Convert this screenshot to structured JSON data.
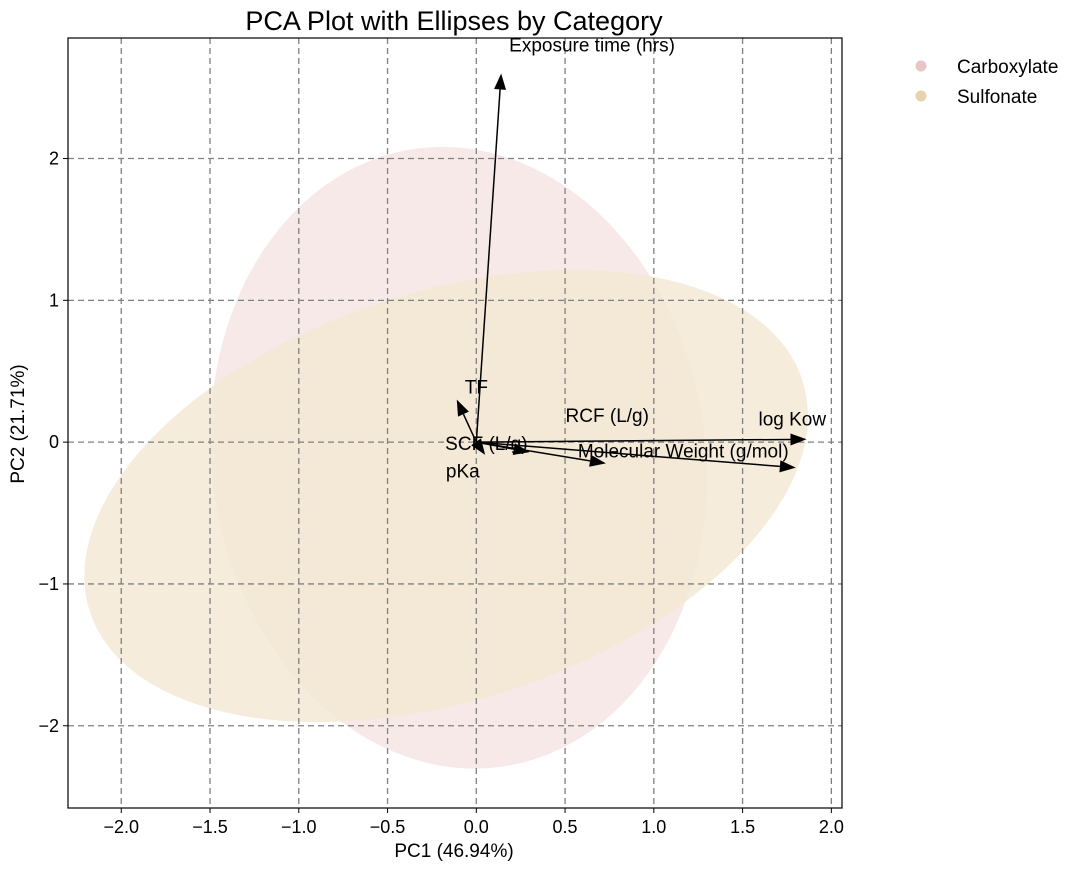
{
  "chart_data": {
    "type": "scatter",
    "subtype": "pca-biplot",
    "title": "PCA Plot with Ellipses by Category",
    "xlabel": "PC1 (46.94%)",
    "ylabel": "PC2 (21.71%)",
    "xlim": [
      -2.3,
      2.06
    ],
    "ylim": [
      -2.58,
      2.85
    ],
    "xticks": [
      -2.0,
      -1.5,
      -1.0,
      -0.5,
      0.0,
      0.5,
      1.0,
      1.5,
      2.0
    ],
    "xtick_labels": [
      "−2.0",
      "−1.5",
      "−1.0",
      "−0.5",
      "0.0",
      "0.5",
      "1.0",
      "1.5",
      "2.0"
    ],
    "yticks": [
      -2,
      -1,
      0,
      1,
      2
    ],
    "ytick_labels": [
      "−2",
      "−1",
      "0",
      "1",
      "2"
    ],
    "grid": true,
    "legend_position": "outside-top-right",
    "series": [
      {
        "name": "Carboxylate",
        "color": "#e8c6c6",
        "ellipse": {
          "center": [
            -0.1,
            -0.11
          ],
          "rx": 1.39,
          "ry": 2.2,
          "angle": -8,
          "fill": "#f6e4e4"
        }
      },
      {
        "name": "Sulfonate",
        "color": "#e8d1ae",
        "ellipse": {
          "center": [
            -0.17,
            -0.38
          ],
          "rx": 2.11,
          "ry": 1.44,
          "angle": -18,
          "fill": "#f2e7d2"
        }
      }
    ],
    "loadings": [
      {
        "label": "Exposure time  (hrs)",
        "x": 0.14,
        "y": 2.6
      },
      {
        "label": "TF",
        "x": -0.11,
        "y": 0.3
      },
      {
        "label": "RCF (L/g)",
        "x": 0.3,
        "y": -0.07
      },
      {
        "label": "SCF (L/g)",
        "x": 0.05,
        "y": -0.09
      },
      {
        "label": "log Kow",
        "x": 1.86,
        "y": 0.02
      },
      {
        "label": "Molecular Weight (g/mol)",
        "x": 1.8,
        "y": -0.18
      },
      {
        "label": "pKa",
        "x": 0.73,
        "y": -0.15
      }
    ]
  }
}
